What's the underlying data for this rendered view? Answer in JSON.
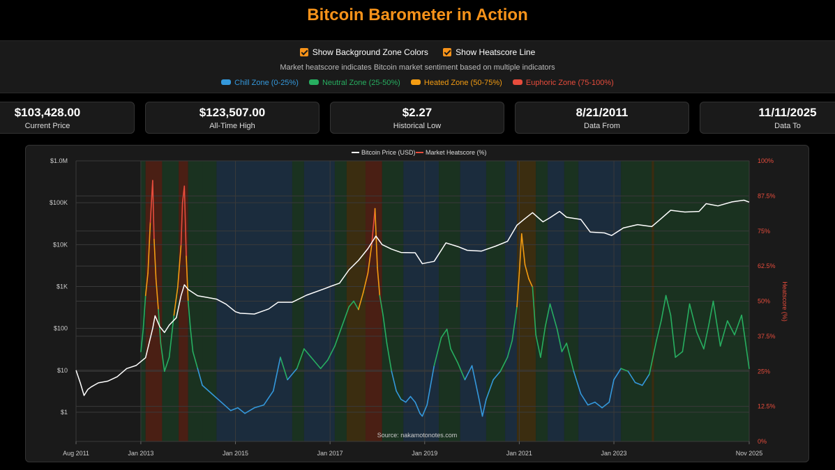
{
  "title": "Bitcoin Barometer in Action",
  "controls": {
    "show_zones_label": "Show Background Zone Colors",
    "show_heatscore_label": "Show Heatscore Line",
    "description": "Market heatscore indicates Bitcoin market sentiment based on multiple indicators",
    "zones": [
      {
        "label": "Chill Zone (0-25%)",
        "color": "#3498db"
      },
      {
        "label": "Neutral Zone (25-50%)",
        "color": "#27ae60"
      },
      {
        "label": "Heated Zone (50-75%)",
        "color": "#f39c12"
      },
      {
        "label": "Euphoric Zone (75-100%)",
        "color": "#e74c3c"
      }
    ]
  },
  "stats": [
    {
      "value": "$103,428.00",
      "label": "Current Price"
    },
    {
      "value": "$123,507.00",
      "label": "All-Time High"
    },
    {
      "value": "$2.27",
      "label": "Historical Low"
    },
    {
      "value": "8/21/2011",
      "label": "Data From"
    },
    {
      "value": "11/11/2025",
      "label": "Data To"
    }
  ],
  "chart_data": {
    "type": "line",
    "legend": [
      "Bitcoin Price (USD)",
      "Market Heatscore (%)"
    ],
    "legend_position": "top-center",
    "source": "Source: nakamotonotes.com",
    "x_ticks": [
      "Aug 2011",
      "Jan 2013",
      "Jan 2015",
      "Jan 2017",
      "Jan 2019",
      "Jan 2021",
      "Jan 2023",
      "Nov 2025"
    ],
    "x_tick_years": [
      2011.63,
      2013.0,
      2015.0,
      2017.0,
      2019.0,
      2021.0,
      2023.0,
      2025.86
    ],
    "xlim": [
      2011.63,
      2025.86
    ],
    "y_left_ticks": [
      "$1.0M",
      "$100K",
      "$10K",
      "$1K",
      "$100",
      "$10",
      "$1"
    ],
    "y_left_scale": "log",
    "ylim_left": [
      0.2,
      1000000
    ],
    "y_right_label": "Heatscore (%)",
    "y_right_ticks": [
      "100%",
      "87.5%",
      "75%",
      "62.5%",
      "50%",
      "37.5%",
      "25%",
      "12.5%",
      "0%"
    ],
    "ylim_right": [
      0,
      100
    ],
    "grid": true,
    "price_series": {
      "name": "Bitcoin Price (USD)",
      "color": "#ffffff",
      "x": [
        2011.63,
        2011.72,
        2011.8,
        2011.88,
        2011.95,
        2012.1,
        2012.3,
        2012.5,
        2012.7,
        2012.9,
        2013.1,
        2013.25,
        2013.3,
        2013.4,
        2013.5,
        2013.6,
        2013.75,
        2013.85,
        2013.92,
        2014.0,
        2014.2,
        2014.4,
        2014.6,
        2014.8,
        2015.0,
        2015.1,
        2015.4,
        2015.7,
        2015.9,
        2016.2,
        2016.5,
        2016.9,
        2017.0,
        2017.2,
        2017.4,
        2017.6,
        2017.8,
        2017.97,
        2018.1,
        2018.3,
        2018.5,
        2018.8,
        2018.95,
        2019.2,
        2019.45,
        2019.7,
        2019.9,
        2020.2,
        2020.5,
        2020.75,
        2020.95,
        2021.1,
        2021.28,
        2021.5,
        2021.65,
        2021.85,
        2022.0,
        2022.3,
        2022.5,
        2022.8,
        2022.95,
        2023.2,
        2023.5,
        2023.8,
        2024.0,
        2024.2,
        2024.5,
        2024.8,
        2024.95,
        2025.2,
        2025.5,
        2025.75,
        2025.86
      ],
      "y": [
        10,
        5,
        2.5,
        3.5,
        4,
        5,
        5.5,
        7,
        11,
        13,
        20,
        100,
        200,
        110,
        80,
        120,
        180,
        600,
        1100,
        850,
        600,
        550,
        500,
        380,
        250,
        230,
        220,
        290,
        420,
        420,
        620,
        900,
        1000,
        1200,
        2500,
        4200,
        8000,
        16000,
        10000,
        7800,
        6500,
        6400,
        3500,
        4000,
        11000,
        9000,
        7300,
        7000,
        9200,
        12000,
        29000,
        40000,
        58000,
        35000,
        44000,
        62000,
        45000,
        40000,
        20000,
        19000,
        16500,
        25000,
        30000,
        27000,
        42000,
        66000,
        60000,
        62000,
        95000,
        84000,
        105000,
        115000,
        103428
      ],
      "note": "price"
    },
    "heatscore_series": {
      "name": "Market Heatscore (%)",
      "x": [
        2013.0,
        2013.05,
        2013.1,
        2013.15,
        2013.2,
        2013.25,
        2013.28,
        2013.32,
        2013.37,
        2013.42,
        2013.5,
        2013.6,
        2013.7,
        2013.78,
        2013.85,
        2013.88,
        2013.92,
        2013.96,
        2014.0,
        2014.05,
        2014.1,
        2014.2,
        2014.3,
        2014.5,
        2014.7,
        2014.9,
        2015.05,
        2015.2,
        2015.4,
        2015.6,
        2015.8,
        2015.95,
        2016.1,
        2016.3,
        2016.45,
        2016.6,
        2016.8,
        2016.95,
        2017.1,
        2017.25,
        2017.4,
        2017.5,
        2017.6,
        2017.7,
        2017.8,
        2017.88,
        2017.95,
        2018.0,
        2018.05,
        2018.12,
        2018.2,
        2018.3,
        2018.4,
        2018.5,
        2018.6,
        2018.7,
        2018.8,
        2018.9,
        2018.95,
        2019.05,
        2019.2,
        2019.35,
        2019.47,
        2019.55,
        2019.7,
        2019.85,
        2020.0,
        2020.15,
        2020.22,
        2020.3,
        2020.45,
        2020.6,
        2020.75,
        2020.85,
        2020.95,
        2021.0,
        2021.05,
        2021.12,
        2021.2,
        2021.28,
        2021.35,
        2021.45,
        2021.55,
        2021.65,
        2021.8,
        2021.9,
        2022.0,
        2022.15,
        2022.3,
        2022.45,
        2022.6,
        2022.75,
        2022.9,
        2023.0,
        2023.15,
        2023.3,
        2023.45,
        2023.6,
        2023.75,
        2023.9,
        2024.0,
        2024.1,
        2024.2,
        2024.3,
        2024.45,
        2024.6,
        2024.75,
        2024.9,
        2025.0,
        2025.1,
        2025.25,
        2025.4,
        2025.55,
        2025.7,
        2025.86
      ],
      "y": [
        32,
        40,
        52,
        60,
        78,
        93,
        72,
        58,
        47,
        35,
        25,
        30,
        45,
        55,
        70,
        85,
        91,
        66,
        50,
        40,
        32,
        26,
        20,
        17,
        14,
        11,
        12,
        10,
        12,
        13,
        18,
        30,
        22,
        26,
        33,
        30,
        26,
        29,
        34,
        41,
        48,
        50,
        47,
        53,
        60,
        70,
        83,
        62,
        52,
        45,
        35,
        25,
        18,
        15,
        14,
        16,
        14,
        10,
        9,
        13,
        27,
        37,
        40,
        33,
        28,
        22,
        27,
        15,
        9,
        15,
        22,
        25,
        30,
        36,
        48,
        60,
        74,
        63,
        58,
        55,
        38,
        30,
        41,
        49,
        40,
        32,
        35,
        25,
        17,
        13,
        14,
        12,
        14,
        22,
        26,
        25,
        21,
        20,
        24,
        36,
        43,
        52,
        45,
        30,
        32,
        49,
        39,
        33,
        41,
        50,
        34,
        43,
        38,
        45,
        26
      ]
    },
    "zone_background": {
      "breaks": [
        2011.63,
        2013.0,
        2013.1,
        2013.45,
        2013.8,
        2014.0,
        2014.3,
        2014.6,
        2016.2,
        2016.45,
        2017.1,
        2017.35,
        2017.75,
        2018.1,
        2018.55,
        2019.3,
        2019.75,
        2020.3,
        2020.7,
        2020.95,
        2021.35,
        2021.6,
        2021.95,
        2022.25,
        2023.15,
        2023.8,
        2023.85,
        2025.86
      ],
      "zones": [
        "none",
        "neutral",
        "euphoric",
        "neutral",
        "euphoric",
        "neutral",
        "neutral",
        "chill",
        "neutral",
        "chill",
        "neutral",
        "heated",
        "euphoric",
        "neutral",
        "chill",
        "neutral",
        "chill",
        "neutral",
        "chill",
        "heated",
        "neutral",
        "chill",
        "neutral",
        "chill",
        "neutral",
        "heated",
        "neutral"
      ]
    },
    "colors": {
      "chill": "#3498db",
      "neutral": "#27ae60",
      "heated": "#f39c12",
      "euphoric": "#e74c3c",
      "heat_axis": "#e74c3c"
    }
  }
}
